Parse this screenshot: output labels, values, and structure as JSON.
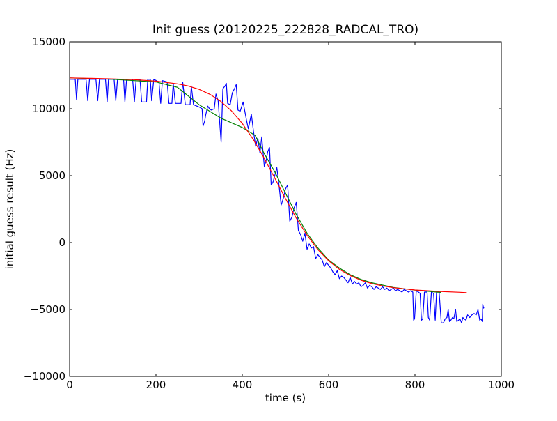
{
  "chart_data": {
    "type": "line",
    "title": "Init guess (20120225_222828_RADCAL_TRO)",
    "xlabel": "time (s)",
    "ylabel": "initial guess result (Hz)",
    "xlim": [
      0,
      1000
    ],
    "ylim": [
      -10000,
      15000
    ],
    "xticks": [
      0,
      200,
      400,
      600,
      800,
      1000
    ],
    "yticks": [
      -10000,
      -5000,
      0,
      5000,
      10000,
      15000
    ],
    "xtick_labels": [
      "0",
      "200",
      "400",
      "600",
      "800",
      "1000"
    ],
    "ytick_labels": [
      "−10000",
      "−5000",
      "0",
      "5000",
      "10000",
      "15000"
    ],
    "grid": false,
    "legend": "none",
    "series": [
      {
        "color": "#0000ff",
        "points": [
          [
            0,
            12200
          ],
          [
            13,
            12200
          ],
          [
            16,
            10700
          ],
          [
            19,
            12200
          ],
          [
            38,
            12200
          ],
          [
            42,
            10600
          ],
          [
            46,
            12200
          ],
          [
            61,
            12200
          ],
          [
            65,
            10600
          ],
          [
            69,
            12200
          ],
          [
            83,
            12200
          ],
          [
            87,
            10500
          ],
          [
            90,
            12200
          ],
          [
            103,
            12200
          ],
          [
            107,
            10600
          ],
          [
            111,
            12200
          ],
          [
            125,
            12200
          ],
          [
            128,
            10500
          ],
          [
            132,
            12200
          ],
          [
            146,
            12200
          ],
          [
            150,
            10500
          ],
          [
            154,
            12200
          ],
          [
            163,
            12200
          ],
          [
            167,
            10500
          ],
          [
            178,
            10500
          ],
          [
            181,
            12200
          ],
          [
            187,
            12200
          ],
          [
            190,
            10600
          ],
          [
            195,
            12200
          ],
          [
            207,
            12000
          ],
          [
            211,
            10400
          ],
          [
            215,
            12100
          ],
          [
            226,
            12000
          ],
          [
            230,
            10400
          ],
          [
            237,
            10400
          ],
          [
            240,
            11900
          ],
          [
            245,
            10400
          ],
          [
            258,
            10400
          ],
          [
            262,
            12000
          ],
          [
            268,
            10300
          ],
          [
            279,
            10300
          ],
          [
            282,
            11700
          ],
          [
            287,
            10300
          ],
          [
            302,
            10100
          ],
          [
            307,
            10000
          ],
          [
            309,
            8700
          ],
          [
            313,
            9100
          ],
          [
            315,
            9500
          ],
          [
            320,
            10200
          ],
          [
            324,
            10000
          ],
          [
            328,
            9900
          ],
          [
            335,
            10000
          ],
          [
            339,
            11100
          ],
          [
            344,
            10600
          ],
          [
            351,
            7500
          ],
          [
            355,
            11500
          ],
          [
            360,
            11700
          ],
          [
            363,
            11900
          ],
          [
            366,
            10400
          ],
          [
            372,
            10300
          ],
          [
            377,
            11200
          ],
          [
            382,
            11500
          ],
          [
            386,
            11800
          ],
          [
            390,
            9900
          ],
          [
            395,
            9800
          ],
          [
            402,
            10500
          ],
          [
            410,
            9100
          ],
          [
            414,
            8500
          ],
          [
            421,
            9600
          ],
          [
            426,
            8300
          ],
          [
            431,
            7200
          ],
          [
            436,
            7800
          ],
          [
            441,
            6700
          ],
          [
            445,
            7900
          ],
          [
            451,
            5700
          ],
          [
            455,
            6100
          ],
          [
            459,
            6800
          ],
          [
            463,
            7100
          ],
          [
            467,
            4300
          ],
          [
            471,
            4500
          ],
          [
            476,
            5100
          ],
          [
            480,
            5600
          ],
          [
            485,
            4300
          ],
          [
            490,
            2800
          ],
          [
            495,
            3300
          ],
          [
            500,
            4000
          ],
          [
            505,
            4300
          ],
          [
            510,
            1600
          ],
          [
            515,
            1900
          ],
          [
            520,
            2600
          ],
          [
            525,
            3000
          ],
          [
            530,
            900
          ],
          [
            535,
            600
          ],
          [
            540,
            100
          ],
          [
            545,
            700
          ],
          [
            550,
            -500
          ],
          [
            555,
            -100
          ],
          [
            560,
            -400
          ],
          [
            565,
            -300
          ],
          [
            570,
            -1200
          ],
          [
            575,
            -900
          ],
          [
            580,
            -1100
          ],
          [
            585,
            -1300
          ],
          [
            590,
            -1800
          ],
          [
            595,
            -1500
          ],
          [
            600,
            -1700
          ],
          [
            605,
            -1900
          ],
          [
            610,
            -2200
          ],
          [
            615,
            -2400
          ],
          [
            620,
            -2100
          ],
          [
            625,
            -2700
          ],
          [
            630,
            -2500
          ],
          [
            635,
            -2600
          ],
          [
            640,
            -2800
          ],
          [
            645,
            -3000
          ],
          [
            650,
            -2600
          ],
          [
            655,
            -3100
          ],
          [
            660,
            -2900
          ],
          [
            665,
            -3100
          ],
          [
            670,
            -3000
          ],
          [
            675,
            -3300
          ],
          [
            680,
            -3200
          ],
          [
            685,
            -3000
          ],
          [
            690,
            -3400
          ],
          [
            695,
            -3200
          ],
          [
            700,
            -3300
          ],
          [
            705,
            -3500
          ],
          [
            710,
            -3300
          ],
          [
            715,
            -3400
          ],
          [
            720,
            -3500
          ],
          [
            725,
            -3300
          ],
          [
            730,
            -3500
          ],
          [
            735,
            -3400
          ],
          [
            740,
            -3600
          ],
          [
            745,
            -3500
          ],
          [
            750,
            -3400
          ],
          [
            755,
            -3600
          ],
          [
            760,
            -3500
          ],
          [
            765,
            -3600
          ],
          [
            770,
            -3700
          ],
          [
            775,
            -3500
          ],
          [
            780,
            -3600
          ],
          [
            785,
            -3700
          ],
          [
            790,
            -3600
          ],
          [
            795,
            -3700
          ],
          [
            797,
            -5800
          ],
          [
            799,
            -5700
          ],
          [
            803,
            -3600
          ],
          [
            808,
            -3700
          ],
          [
            812,
            -3800
          ],
          [
            815,
            -5800
          ],
          [
            818,
            -5700
          ],
          [
            822,
            -3700
          ],
          [
            828,
            -3700
          ],
          [
            831,
            -5600
          ],
          [
            834,
            -5800
          ],
          [
            838,
            -3700
          ],
          [
            843,
            -3800
          ],
          [
            847,
            -5800
          ],
          [
            850,
            -3700
          ],
          [
            856,
            -3700
          ],
          [
            861,
            -6000
          ],
          [
            866,
            -6000
          ],
          [
            870,
            -5700
          ],
          [
            874,
            -5600
          ],
          [
            877,
            -5000
          ],
          [
            880,
            -5900
          ],
          [
            883,
            -5800
          ],
          [
            887,
            -5600
          ],
          [
            890,
            -5700
          ],
          [
            894,
            -5000
          ],
          [
            897,
            -5900
          ],
          [
            901,
            -5800
          ],
          [
            904,
            -5700
          ],
          [
            908,
            -6000
          ],
          [
            911,
            -5600
          ],
          [
            914,
            -5700
          ],
          [
            918,
            -5800
          ],
          [
            922,
            -5400
          ],
          [
            927,
            -5600
          ],
          [
            932,
            -5400
          ],
          [
            937,
            -5300
          ],
          [
            942,
            -5400
          ],
          [
            946,
            -5000
          ],
          [
            950,
            -5800
          ],
          [
            953,
            -5700
          ],
          [
            956,
            -5900
          ],
          [
            957,
            -4600
          ],
          [
            959,
            -4900
          ],
          [
            960,
            -4800
          ]
        ]
      },
      {
        "color": "#008000",
        "points": [
          [
            0,
            12300
          ],
          [
            50,
            12250
          ],
          [
            100,
            12200
          ],
          [
            150,
            12100
          ],
          [
            200,
            12000
          ],
          [
            250,
            11600
          ],
          [
            300,
            10300
          ],
          [
            350,
            9300
          ],
          [
            400,
            8600
          ],
          [
            430,
            8000
          ],
          [
            450,
            6700
          ],
          [
            475,
            5300
          ],
          [
            500,
            3700
          ],
          [
            525,
            2100
          ],
          [
            550,
            700
          ],
          [
            575,
            -400
          ],
          [
            600,
            -1300
          ],
          [
            625,
            -1900
          ],
          [
            650,
            -2400
          ],
          [
            675,
            -2750
          ],
          [
            700,
            -3000
          ],
          [
            750,
            -3350
          ],
          [
            800,
            -3550
          ],
          [
            850,
            -3700
          ],
          [
            860,
            -3720
          ]
        ]
      },
      {
        "color": "#ff0000",
        "points": [
          [
            0,
            12300
          ],
          [
            50,
            12270
          ],
          [
            100,
            12230
          ],
          [
            150,
            12170
          ],
          [
            200,
            12060
          ],
          [
            250,
            11860
          ],
          [
            275,
            11700
          ],
          [
            300,
            11450
          ],
          [
            325,
            11080
          ],
          [
            350,
            10550
          ],
          [
            375,
            9840
          ],
          [
            400,
            8900
          ],
          [
            425,
            7730
          ],
          [
            450,
            6350
          ],
          [
            475,
            4840
          ],
          [
            500,
            3290
          ],
          [
            525,
            1830
          ],
          [
            550,
            550
          ],
          [
            575,
            -520
          ],
          [
            600,
            -1360
          ],
          [
            625,
            -2000
          ],
          [
            650,
            -2470
          ],
          [
            675,
            -2810
          ],
          [
            700,
            -3060
          ],
          [
            725,
            -3240
          ],
          [
            750,
            -3370
          ],
          [
            800,
            -3540
          ],
          [
            850,
            -3640
          ],
          [
            900,
            -3710
          ],
          [
            920,
            -3740
          ]
        ]
      }
    ]
  }
}
